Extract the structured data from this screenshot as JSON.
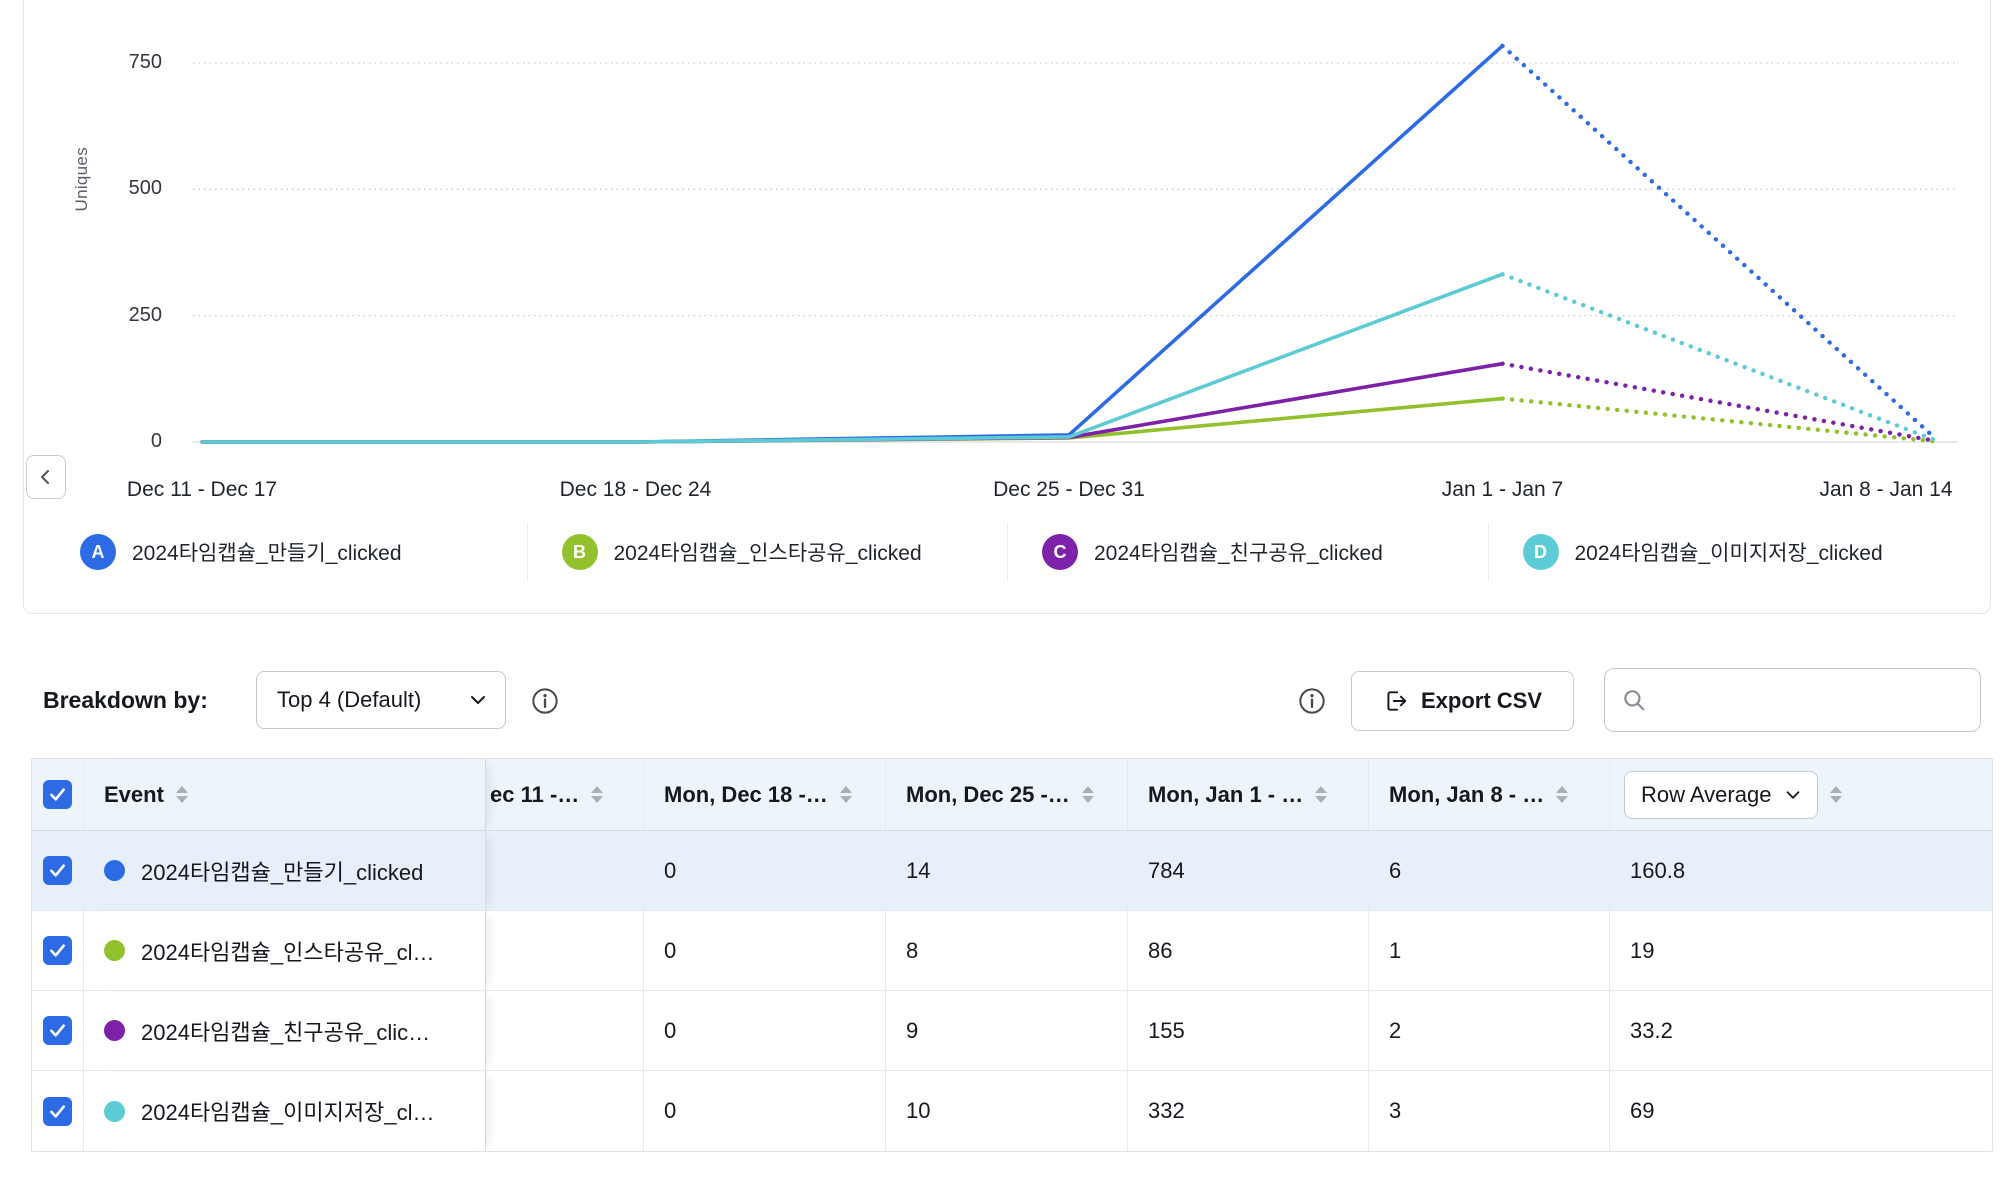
{
  "colors": {
    "accent": "#2c6be4",
    "blue": "#2c6be4",
    "green": "#93c12e",
    "purple": "#7d22a8",
    "teal": "#5dcbd5",
    "header_bg": "#edf4fb",
    "selected_row_bg": "#e7f0fa",
    "border": "#e7eaee"
  },
  "chart_data": {
    "type": "line",
    "title": "",
    "ylabel": "Uniques",
    "xlabel": "",
    "ylim": [
      0,
      800
    ],
    "yticks": [
      0,
      250,
      500,
      750
    ],
    "grid": "dotted-horizontal",
    "legend_position": "bottom",
    "dashed_from_index": 3,
    "x": [
      "Dec 11 - Dec 17",
      "Dec 18 - Dec 24",
      "Dec 25 - Dec 31",
      "Jan 1 - Jan 7",
      "Jan 8 - Jan 14"
    ],
    "series": [
      {
        "letter": "A",
        "name": "2024타임캡슐_만들기_clicked",
        "color": "#2c6be4",
        "values": [
          0,
          0,
          14,
          784,
          6
        ]
      },
      {
        "letter": "B",
        "name": "2024타임캡슐_인스타공유_clicked",
        "color": "#93c12e",
        "values": [
          0,
          0,
          8,
          86,
          1
        ]
      },
      {
        "letter": "C",
        "name": "2024타임캡슐_친구공유_clicked",
        "color": "#7d22a8",
        "values": [
          0,
          0,
          9,
          155,
          2
        ]
      },
      {
        "letter": "D",
        "name": "2024타임캡슐_이미지저장_clicked",
        "color": "#5dcbd5",
        "values": [
          0,
          0,
          10,
          332,
          3
        ]
      }
    ]
  },
  "breakdown": {
    "label": "Breakdown by:",
    "dropdown_value": "Top 4 (Default)",
    "export_label": "Export CSV",
    "search_placeholder": ""
  },
  "table": {
    "columns": [
      "Event",
      "ec 11 -…",
      "Mon, Dec 18 -…",
      "Mon, Dec 25 -…",
      "Mon, Jan 1 - …",
      "Mon, Jan 8 - …"
    ],
    "row_average_label": "Row Average",
    "rows": [
      {
        "letter": "A",
        "color": "#2c6be4",
        "event": "2024타임캡슐_만들기_clicked",
        "values": [
          "",
          "0",
          "14",
          "784",
          "6"
        ],
        "row_average": "160.8",
        "checked": true,
        "selected": true
      },
      {
        "letter": "B",
        "color": "#93c12e",
        "event": "2024타임캡슐_인스타공유_cl…",
        "values": [
          "",
          "0",
          "8",
          "86",
          "1"
        ],
        "row_average": "19",
        "checked": true,
        "selected": false
      },
      {
        "letter": "C",
        "color": "#7d22a8",
        "event": "2024타임캡슐_친구공유_clic…",
        "values": [
          "",
          "0",
          "9",
          "155",
          "2"
        ],
        "row_average": "33.2",
        "checked": true,
        "selected": false
      },
      {
        "letter": "D",
        "color": "#5dcbd5",
        "event": "2024타임캡슐_이미지저장_cl…",
        "values": [
          "",
          "0",
          "10",
          "332",
          "3"
        ],
        "row_average": "69",
        "checked": true,
        "selected": false
      }
    ]
  }
}
